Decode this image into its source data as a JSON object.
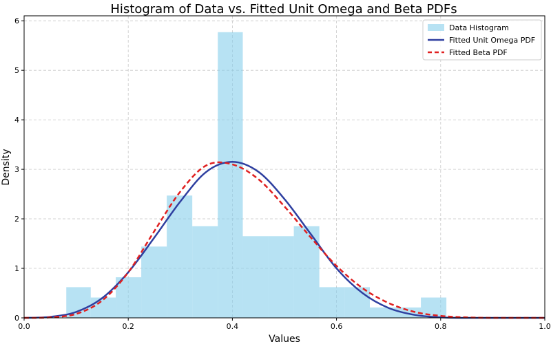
{
  "chart_data": {
    "type": "histogram",
    "title": "Histogram of Data vs. Fitted Unit Omega and Beta PDFs",
    "xlabel": "Values",
    "ylabel": "Density",
    "xlim": [
      0.0,
      1.0
    ],
    "ylim": [
      0,
      6.1
    ],
    "xticks": [
      0.0,
      0.2,
      0.4,
      0.6,
      0.8,
      1.0
    ],
    "xtick_labels": [
      "0.0",
      "0.2",
      "0.4",
      "0.6",
      "0.8",
      "1.0"
    ],
    "yticks": [
      0,
      1,
      2,
      3,
      4,
      5,
      6
    ],
    "ytick_labels": [
      "0",
      "1",
      "2",
      "3",
      "4",
      "5",
      "6"
    ],
    "grid": true,
    "legend_position": "top-right",
    "histogram": {
      "name": "Data Histogram",
      "color": "#87CEEB",
      "opacity": 0.6,
      "bins": [
        {
          "x0": 0.081,
          "x1": 0.128,
          "density": 0.62
        },
        {
          "x0": 0.128,
          "x1": 0.176,
          "density": 0.41
        },
        {
          "x0": 0.176,
          "x1": 0.225,
          "density": 0.82
        },
        {
          "x0": 0.225,
          "x1": 0.274,
          "density": 1.44
        },
        {
          "x0": 0.274,
          "x1": 0.323,
          "density": 2.47
        },
        {
          "x0": 0.323,
          "x1": 0.372,
          "density": 1.85
        },
        {
          "x0": 0.372,
          "x1": 0.42,
          "density": 5.77
        },
        {
          "x0": 0.42,
          "x1": 0.469,
          "density": 1.65
        },
        {
          "x0": 0.469,
          "x1": 0.518,
          "density": 1.65
        },
        {
          "x0": 0.518,
          "x1": 0.567,
          "density": 1.85
        },
        {
          "x0": 0.567,
          "x1": 0.616,
          "density": 0.62
        },
        {
          "x0": 0.616,
          "x1": 0.664,
          "density": 0.62
        },
        {
          "x0": 0.664,
          "x1": 0.713,
          "density": 0.21
        },
        {
          "x0": 0.713,
          "x1": 0.762,
          "density": 0.21
        },
        {
          "x0": 0.762,
          "x1": 0.811,
          "density": 0.41
        }
      ]
    },
    "series": [
      {
        "name": "Fitted Unit Omega PDF",
        "type": "line",
        "color": "#2E3FA0",
        "dash": "solid",
        "x": [
          0.0,
          0.05,
          0.1,
          0.15,
          0.2,
          0.25,
          0.3,
          0.35,
          0.4,
          0.45,
          0.5,
          0.55,
          0.6,
          0.65,
          0.7,
          0.75,
          0.8,
          0.85,
          0.9,
          0.95,
          1.0
        ],
        "y": [
          0.0,
          0.02,
          0.12,
          0.4,
          0.92,
          1.62,
          2.35,
          2.95,
          3.15,
          2.95,
          2.4,
          1.7,
          1.0,
          0.5,
          0.2,
          0.06,
          0.01,
          0.0,
          0.0,
          0.0,
          0.0
        ]
      },
      {
        "name": "Fitted Beta PDF",
        "type": "line",
        "color": "#E02020",
        "dash": "dashed",
        "x": [
          0.0,
          0.05,
          0.1,
          0.15,
          0.2,
          0.25,
          0.3,
          0.35,
          0.4,
          0.45,
          0.5,
          0.55,
          0.6,
          0.65,
          0.7,
          0.75,
          0.8,
          0.85,
          0.9,
          0.95,
          1.0
        ],
        "y": [
          0.0,
          0.01,
          0.08,
          0.35,
          0.92,
          1.75,
          2.55,
          3.08,
          3.1,
          2.8,
          2.25,
          1.63,
          1.05,
          0.6,
          0.3,
          0.12,
          0.04,
          0.01,
          0.0,
          0.0,
          0.0
        ]
      }
    ]
  }
}
